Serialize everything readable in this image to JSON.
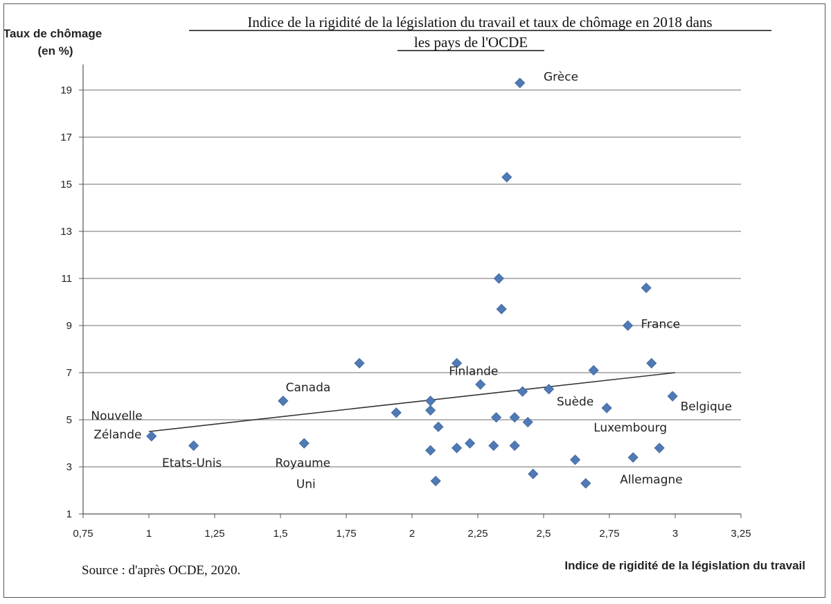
{
  "chart_data": {
    "type": "scatter",
    "title_lines": [
      "Indice de la rigidité de la législation du travail et taux de chômage en 2018 dans",
      "les pays de l'OCDE"
    ],
    "ylabel_lines": [
      "Taux de chômage",
      "(en %)"
    ],
    "xlabel": "Indice de rigidité de la législation du travail",
    "source": "Source : d'après OCDE, 2020.",
    "xlim": [
      0.75,
      3.25
    ],
    "ylim": [
      1,
      20
    ],
    "x_ticks": [
      0.75,
      1,
      1.25,
      1.5,
      1.75,
      2,
      2.25,
      2.5,
      2.75,
      3,
      3.25
    ],
    "x_tick_labels": [
      "0,75",
      "1",
      "1,25",
      "1,5",
      "1,75",
      "2",
      "2,25",
      "2,5",
      "2,75",
      "3",
      "3,25"
    ],
    "y_ticks": [
      1,
      3,
      5,
      7,
      9,
      11,
      13,
      15,
      17,
      19
    ],
    "y_tick_labels": [
      "1",
      "3",
      "5",
      "7",
      "9",
      "11",
      "13",
      "15",
      "17",
      "19"
    ],
    "horizontal_grid": true,
    "marker_color": "#4f7ab5",
    "trendline": {
      "x": [
        1.0,
        3.0
      ],
      "y": [
        4.5,
        7.0
      ]
    },
    "points": [
      {
        "x": 2.41,
        "y": 19.3
      },
      {
        "x": 2.36,
        "y": 15.3
      },
      {
        "x": 2.33,
        "y": 11.0
      },
      {
        "x": 2.34,
        "y": 9.7
      },
      {
        "x": 2.89,
        "y": 10.6
      },
      {
        "x": 2.82,
        "y": 9.0
      },
      {
        "x": 1.8,
        "y": 7.4
      },
      {
        "x": 2.17,
        "y": 7.4
      },
      {
        "x": 2.91,
        "y": 7.4
      },
      {
        "x": 2.69,
        "y": 7.1
      },
      {
        "x": 2.26,
        "y": 6.5
      },
      {
        "x": 2.42,
        "y": 6.2
      },
      {
        "x": 2.52,
        "y": 6.3
      },
      {
        "x": 2.99,
        "y": 6.0
      },
      {
        "x": 1.51,
        "y": 5.8
      },
      {
        "x": 2.07,
        "y": 5.8
      },
      {
        "x": 2.07,
        "y": 5.4
      },
      {
        "x": 2.74,
        "y": 5.5
      },
      {
        "x": 1.94,
        "y": 5.3
      },
      {
        "x": 2.32,
        "y": 5.1
      },
      {
        "x": 2.39,
        "y": 5.1
      },
      {
        "x": 2.44,
        "y": 4.9
      },
      {
        "x": 2.1,
        "y": 4.7
      },
      {
        "x": 1.01,
        "y": 4.3
      },
      {
        "x": 1.17,
        "y": 3.9
      },
      {
        "x": 1.59,
        "y": 4.0
      },
      {
        "x": 2.22,
        "y": 4.0
      },
      {
        "x": 2.31,
        "y": 3.9
      },
      {
        "x": 2.39,
        "y": 3.9
      },
      {
        "x": 2.17,
        "y": 3.8
      },
      {
        "x": 2.07,
        "y": 3.7
      },
      {
        "x": 2.94,
        "y": 3.8
      },
      {
        "x": 2.84,
        "y": 3.4
      },
      {
        "x": 2.62,
        "y": 3.3
      },
      {
        "x": 2.46,
        "y": 2.7
      },
      {
        "x": 2.09,
        "y": 2.4
      },
      {
        "x": 2.66,
        "y": 2.3
      }
    ],
    "annotations": [
      {
        "text": "Grèce",
        "x": 2.5,
        "y": 19.4
      },
      {
        "text": "France",
        "x": 2.87,
        "y": 8.9
      },
      {
        "text": "Finlande",
        "x": 2.14,
        "y": 6.9
      },
      {
        "text": "Canada",
        "x": 1.52,
        "y": 6.2
      },
      {
        "text": "Suède",
        "x": 2.55,
        "y": 5.6
      },
      {
        "text": "Belgique",
        "x": 3.02,
        "y": 5.4
      },
      {
        "text": "Nouvelle",
        "x": 0.78,
        "y": 5.0
      },
      {
        "text": "Zélande",
        "x": 0.79,
        "y": 4.2
      },
      {
        "text": "Luxembourg",
        "x": 2.69,
        "y": 4.5
      },
      {
        "text": "Etats-Unis",
        "x": 1.05,
        "y": 3.0
      },
      {
        "text": "Royaume",
        "x": 1.48,
        "y": 3.0
      },
      {
        "text": "Uni",
        "x": 1.56,
        "y": 2.1
      },
      {
        "text": "Allemagne",
        "x": 2.79,
        "y": 2.3
      }
    ]
  }
}
